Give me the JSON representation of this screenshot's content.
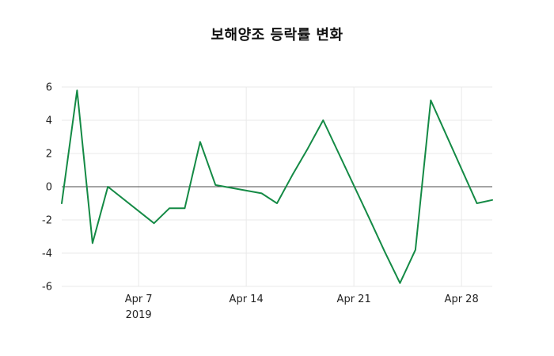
{
  "title": "보해양조 등락률 변화",
  "chart_data": {
    "type": "line",
    "title": "보해양조 등락률 변화",
    "series_name": "등락률",
    "dates": [
      "2019-04-02",
      "2019-04-03",
      "2019-04-04",
      "2019-04-05",
      "2019-04-08",
      "2019-04-09",
      "2019-04-10",
      "2019-04-11",
      "2019-04-12",
      "2019-04-15",
      "2019-04-16",
      "2019-04-17",
      "2019-04-18",
      "2019-04-19",
      "2019-04-22",
      "2019-04-23",
      "2019-04-24",
      "2019-04-25",
      "2019-04-26",
      "2019-04-29",
      "2019-04-30"
    ],
    "x_days": [
      2,
      3,
      4,
      5,
      8,
      9,
      10,
      11,
      12,
      15,
      16,
      17,
      18,
      19,
      22,
      23,
      24,
      25,
      26,
      29,
      30
    ],
    "values": [
      -1.0,
      5.8,
      -3.4,
      0.0,
      -2.2,
      -1.3,
      -1.3,
      2.7,
      0.1,
      -0.4,
      -1.0,
      0.7,
      2.3,
      4.0,
      -1.9,
      -3.9,
      -5.8,
      -3.8,
      5.2,
      -1.0,
      -0.8
    ],
    "xlabel": "",
    "ylabel": "",
    "xlim_days": [
      2,
      30
    ],
    "ylim": [
      -6,
      6
    ],
    "yticks": [
      -6,
      -4,
      -2,
      0,
      2,
      4,
      6
    ],
    "xticks": [
      {
        "day": 7,
        "label": "Apr 7",
        "sublabel": "2019"
      },
      {
        "day": 14,
        "label": "Apr 14",
        "sublabel": ""
      },
      {
        "day": 21,
        "label": "Apr 21",
        "sublabel": ""
      },
      {
        "day": 28,
        "label": "Apr 28",
        "sublabel": ""
      }
    ],
    "grid": true,
    "legend_position": "none",
    "line_color": "#148a45",
    "grid_color": "#e9e9e9",
    "zero_line_color": "#4a4a4a",
    "background_color": "#ffffff",
    "text_color": "#222222"
  }
}
